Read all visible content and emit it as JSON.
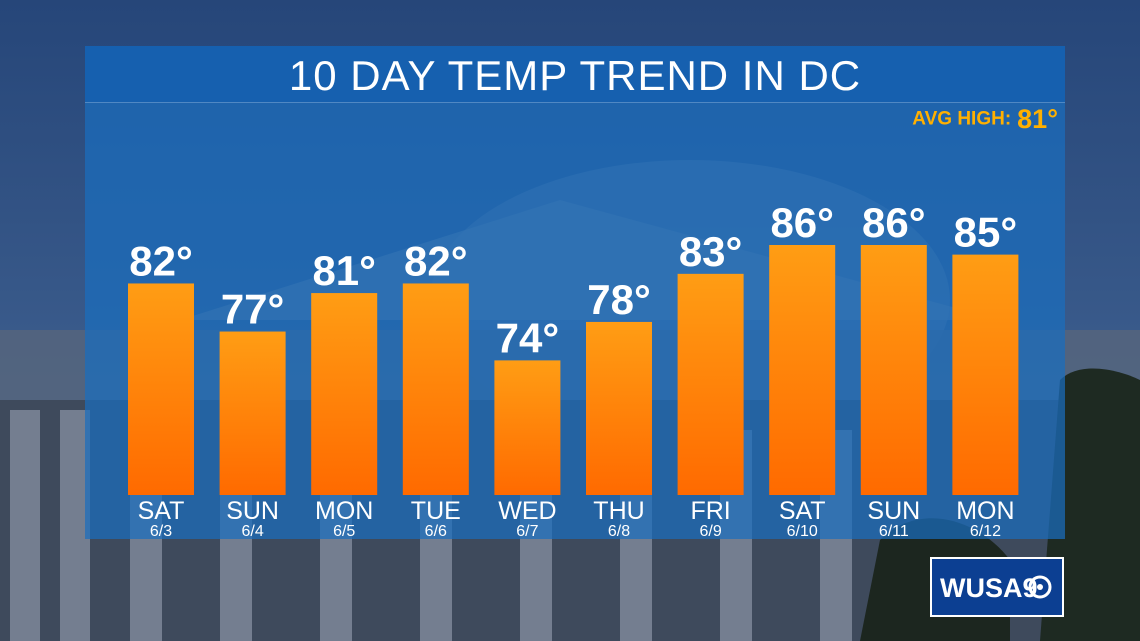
{
  "header": {
    "title": "10 DAY TEMP TREND IN DC",
    "avg_high_label": "AVG HIGH:",
    "avg_high_value": "81°"
  },
  "logo": {
    "text": "WUSA9"
  },
  "colors": {
    "bar_top": "#ff9d14",
    "bar_bottom": "#ff6a00",
    "panel": "#1a6ebe",
    "accent": "#ffb000"
  },
  "chart_data": {
    "type": "bar",
    "title": "10 DAY TEMP TREND IN DC",
    "categories": [
      "SAT",
      "SUN",
      "MON",
      "TUE",
      "WED",
      "THU",
      "FRI",
      "SAT",
      "SUN",
      "MON"
    ],
    "dates": [
      "6/3",
      "6/4",
      "6/5",
      "6/6",
      "6/7",
      "6/8",
      "6/9",
      "6/10",
      "6/11",
      "6/12"
    ],
    "values": [
      82,
      77,
      81,
      82,
      74,
      78,
      83,
      86,
      86,
      85
    ],
    "value_labels": [
      "82°",
      "77°",
      "81°",
      "82°",
      "74°",
      "78°",
      "83°",
      "86°",
      "86°",
      "85°"
    ],
    "annotation": "AVG HIGH: 81°",
    "ylim": [
      60,
      86
    ],
    "grid": false,
    "legend": "none"
  }
}
